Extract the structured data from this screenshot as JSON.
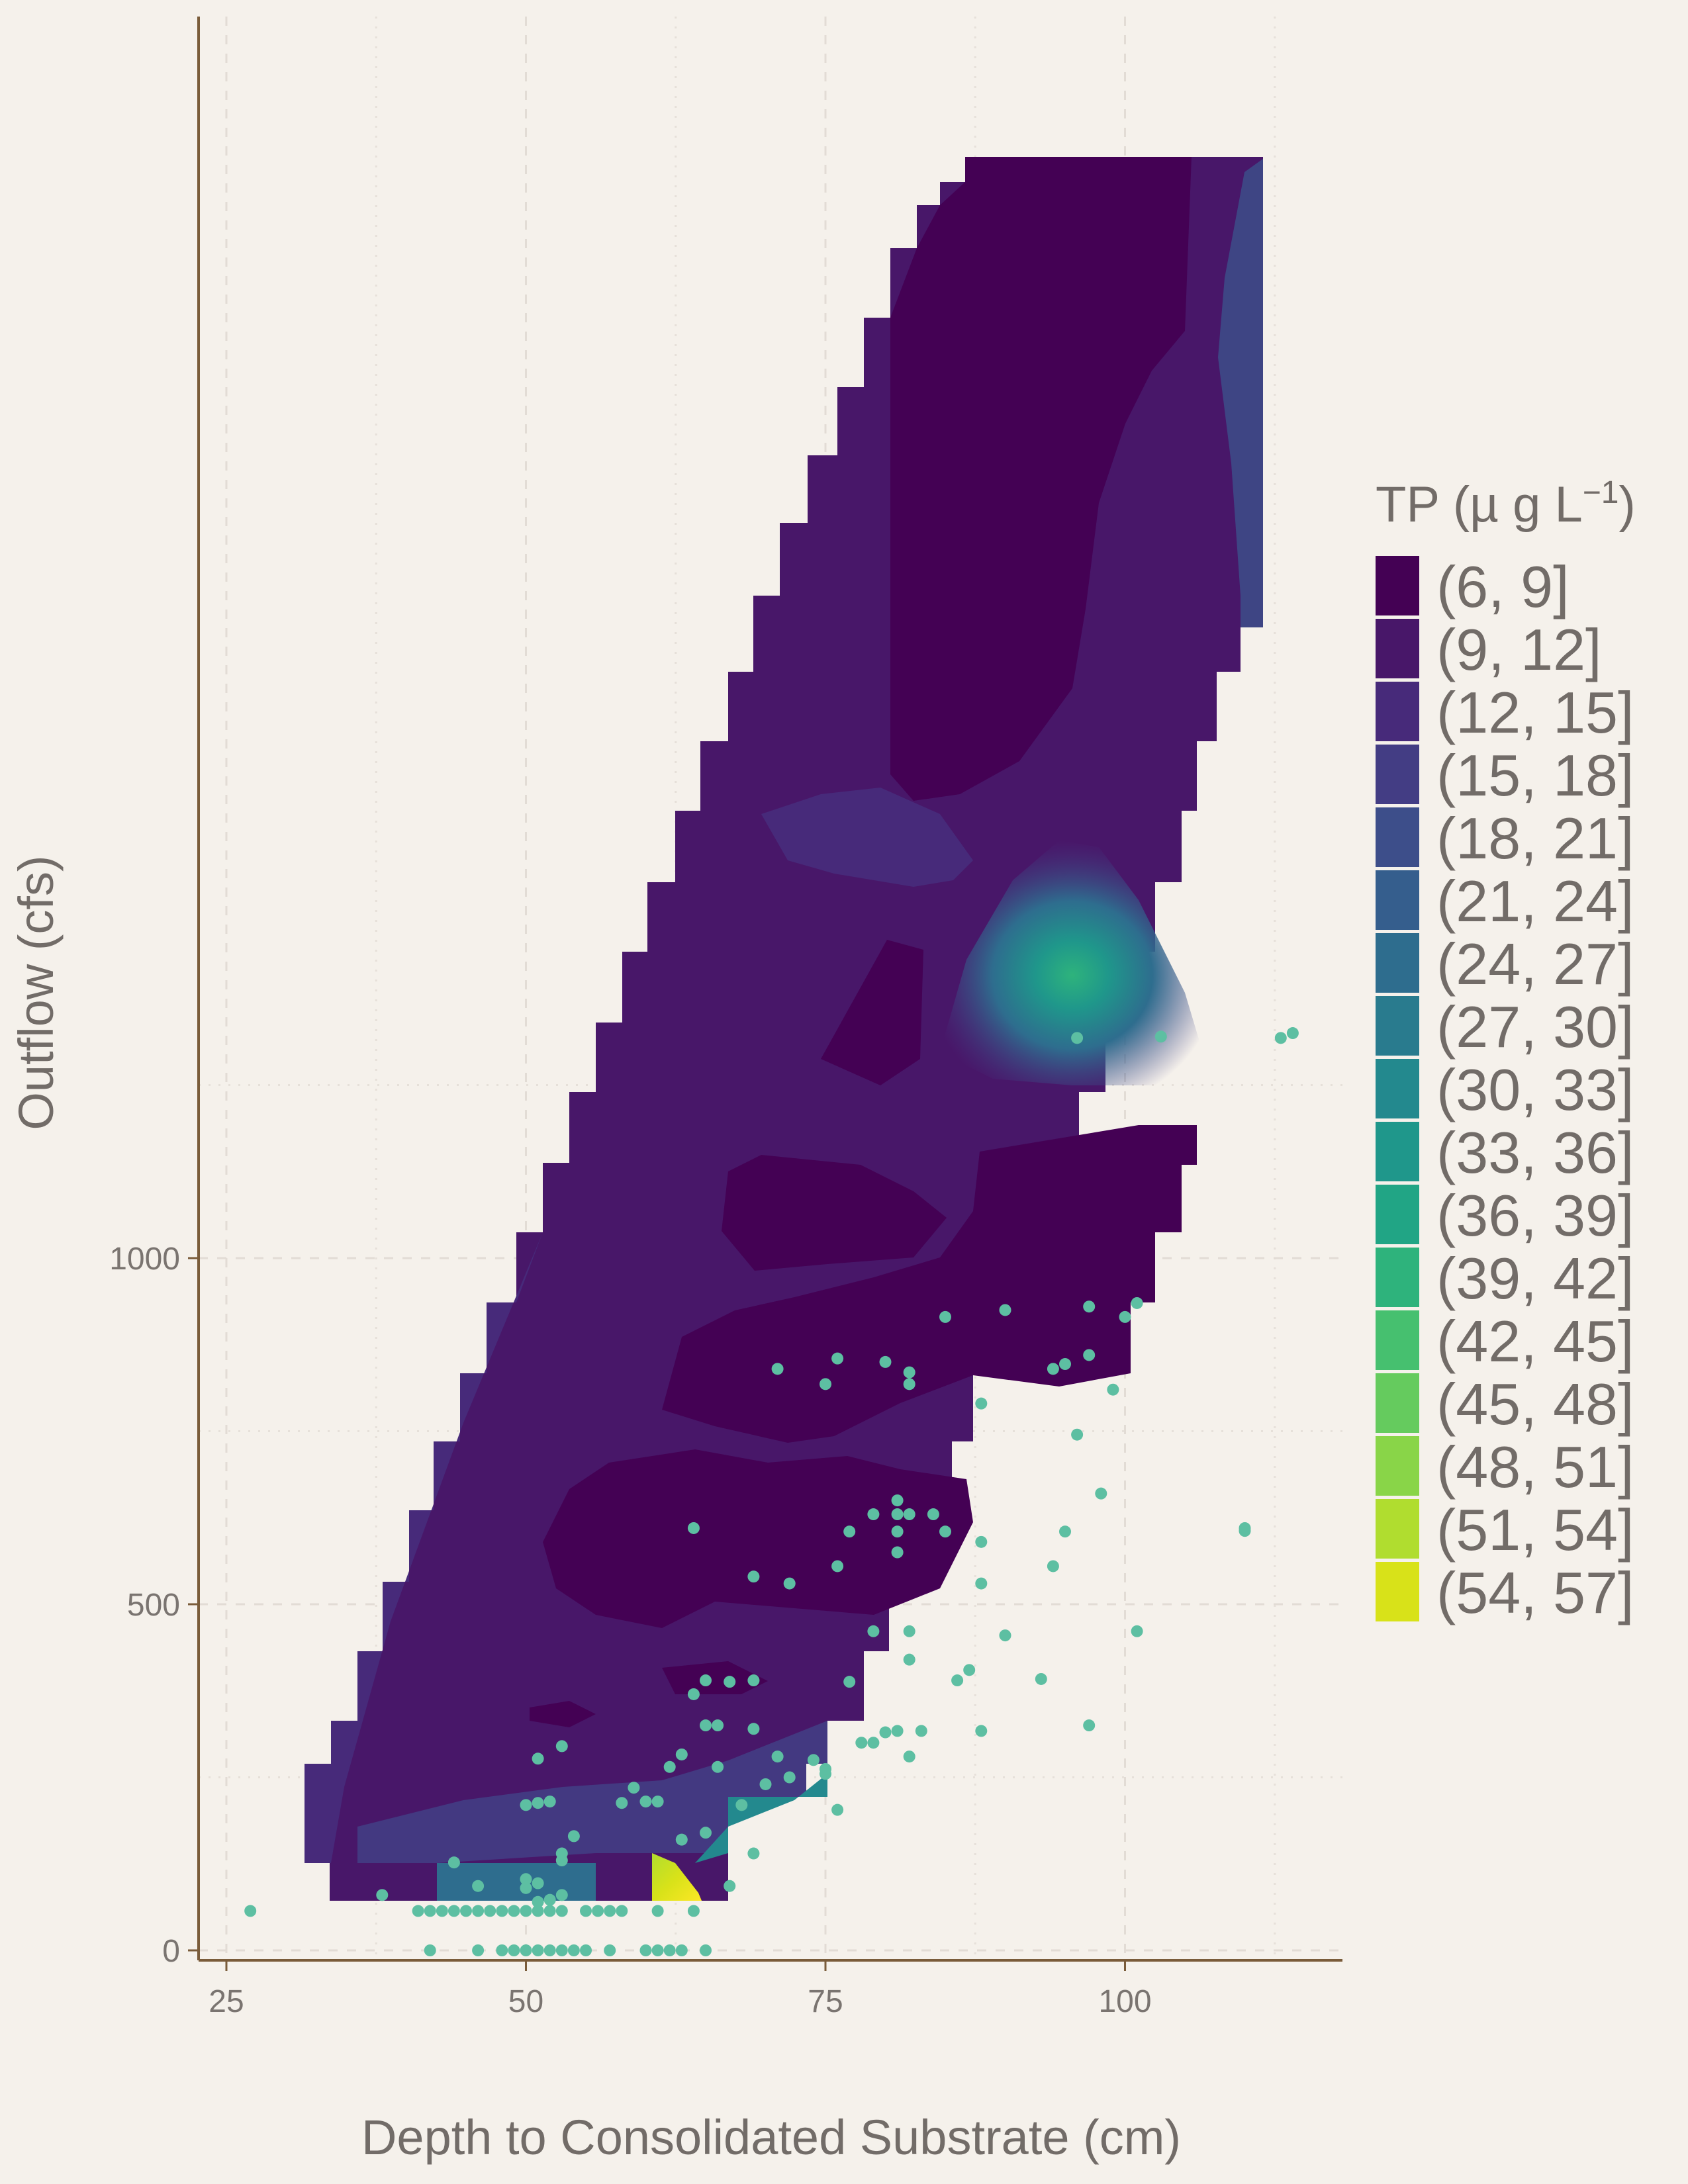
{
  "chart_data": {
    "type": "contour",
    "xlabel": "Depth to Consolidated Substrate (cm)",
    "ylabel": "Outflow (cfs)",
    "xlim": [
      20,
      120
    ],
    "ylim": [
      -100,
      1400
    ],
    "x_ticks": [
      25,
      50,
      75,
      100
    ],
    "y_ticks": [
      0,
      500,
      1000
    ],
    "x_tick_labels": [
      "25",
      "50",
      "75",
      "100"
    ],
    "y_tick_labels": [
      "0",
      "500",
      "1000"
    ],
    "grid": true,
    "legend": {
      "title_main": "TP (µ g L",
      "title_sup": "−1",
      "title_end": ")",
      "placement": "right",
      "bins": [
        "(6, 9]",
        "(9, 12]",
        "(12, 15]",
        "(15, 18]",
        "(18, 21]",
        "(21, 24]",
        "(24, 27]",
        "(27, 30]",
        "(30, 33]",
        "(33, 36]",
        "(36, 39]",
        "(39, 42]",
        "(42, 45]",
        "(45, 48]",
        "(48, 51]",
        "(51, 54]",
        "(54, 57]"
      ],
      "colors": [
        "#440154",
        "#481769",
        "#472a7a",
        "#433d84",
        "#3d4e8a",
        "#355e8d",
        "#2e6d8e",
        "#297b8e",
        "#23898e",
        "#1f978b",
        "#21a585",
        "#2eb37c",
        "#46c06f",
        "#65cb5e",
        "#89d548",
        "#b0dd2f",
        "#d8e219"
      ]
    },
    "point_color": "#5dbfa2",
    "points": [
      [
        27,
        57
      ],
      [
        38,
        80
      ],
      [
        46,
        93
      ],
      [
        50,
        90
      ],
      [
        50,
        103
      ],
      [
        51,
        97
      ],
      [
        53,
        80
      ],
      [
        52,
        73
      ],
      [
        51,
        70
      ],
      [
        44,
        127
      ],
      [
        53,
        130
      ],
      [
        53,
        140
      ],
      [
        54,
        165
      ],
      [
        63,
        160
      ],
      [
        65,
        170
      ],
      [
        69,
        140
      ],
      [
        67,
        93
      ],
      [
        42,
        0
      ],
      [
        46,
        0
      ],
      [
        48,
        0
      ],
      [
        49,
        0
      ],
      [
        50,
        0
      ],
      [
        51,
        0
      ],
      [
        52,
        0
      ],
      [
        53,
        0
      ],
      [
        54,
        0
      ],
      [
        55,
        0
      ],
      [
        57,
        0
      ],
      [
        60,
        0
      ],
      [
        61,
        0
      ],
      [
        62,
        0
      ],
      [
        63,
        0
      ],
      [
        65,
        0
      ],
      [
        41,
        57
      ],
      [
        42,
        57
      ],
      [
        43,
        57
      ],
      [
        44,
        57
      ],
      [
        45,
        57
      ],
      [
        46,
        57
      ],
      [
        47,
        57
      ],
      [
        48,
        57
      ],
      [
        49,
        57
      ],
      [
        50,
        57
      ],
      [
        51,
        57
      ],
      [
        52,
        57
      ],
      [
        53,
        57
      ],
      [
        55,
        57
      ],
      [
        56,
        57
      ],
      [
        57,
        57
      ],
      [
        58,
        57
      ],
      [
        61,
        57
      ],
      [
        64,
        57
      ],
      [
        50,
        210
      ],
      [
        51,
        213
      ],
      [
        52,
        215
      ],
      [
        58,
        213
      ],
      [
        60,
        215
      ],
      [
        61,
        215
      ],
      [
        59,
        235
      ],
      [
        68,
        210
      ],
      [
        70,
        240
      ],
      [
        72,
        250
      ],
      [
        75,
        255
      ],
      [
        75,
        262
      ],
      [
        76,
        203
      ],
      [
        51,
        277
      ],
      [
        53,
        295
      ],
      [
        62,
        265
      ],
      [
        63,
        283
      ],
      [
        66,
        265
      ],
      [
        71,
        280
      ],
      [
        74,
        275
      ],
      [
        78,
        300
      ],
      [
        79,
        300
      ],
      [
        80,
        315
      ],
      [
        81,
        317
      ],
      [
        83,
        317
      ],
      [
        82,
        280
      ],
      [
        88,
        317
      ],
      [
        65,
        325
      ],
      [
        66,
        325
      ],
      [
        69,
        320
      ],
      [
        64,
        370
      ],
      [
        65,
        390
      ],
      [
        67,
        388
      ],
      [
        69,
        390
      ],
      [
        77,
        388
      ],
      [
        82,
        420
      ],
      [
        86,
        390
      ],
      [
        87,
        405
      ],
      [
        93,
        392
      ],
      [
        79,
        461
      ],
      [
        82,
        461
      ],
      [
        90,
        455
      ],
      [
        101,
        461
      ],
      [
        97,
        325
      ],
      [
        69,
        540
      ],
      [
        72,
        530
      ],
      [
        76,
        555
      ],
      [
        81,
        575
      ],
      [
        88,
        530
      ],
      [
        94,
        555
      ],
      [
        64,
        610
      ],
      [
        77,
        605
      ],
      [
        79,
        630
      ],
      [
        81,
        605
      ],
      [
        81,
        630
      ],
      [
        82,
        630
      ],
      [
        84,
        630
      ],
      [
        85,
        605
      ],
      [
        88,
        590
      ],
      [
        95,
        605
      ],
      [
        81,
        650
      ],
      [
        98,
        660
      ],
      [
        110,
        606
      ],
      [
        110,
        610
      ],
      [
        88,
        790
      ],
      [
        96,
        745
      ],
      [
        71,
        840
      ],
      [
        75,
        818
      ],
      [
        76,
        855
      ],
      [
        80,
        850
      ],
      [
        82,
        835
      ],
      [
        82,
        818
      ],
      [
        94,
        840
      ],
      [
        95,
        847
      ],
      [
        97,
        860
      ],
      [
        99,
        810
      ],
      [
        85,
        915
      ],
      [
        90,
        925
      ],
      [
        97,
        930
      ],
      [
        100,
        915
      ],
      [
        101,
        935
      ],
      [
        96,
        1318
      ],
      [
        103,
        1320
      ],
      [
        113,
        1318
      ],
      [
        114,
        1325
      ]
    ]
  }
}
